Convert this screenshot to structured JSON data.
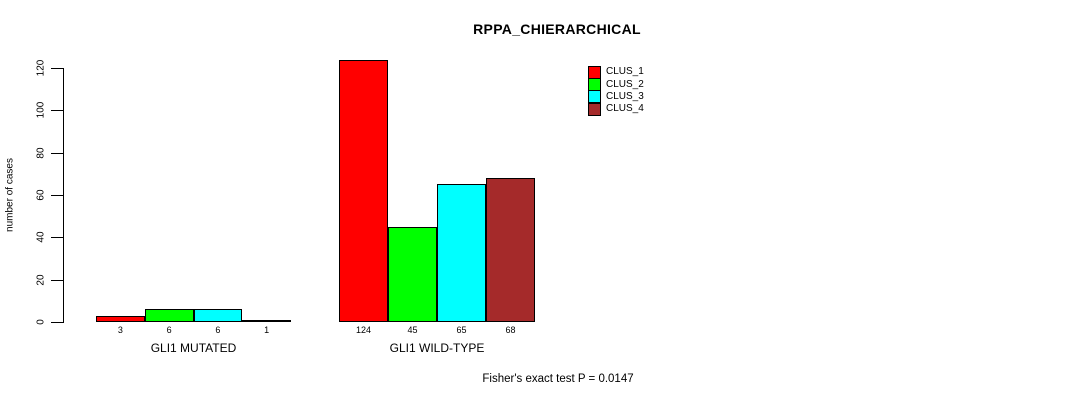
{
  "chart_data": {
    "type": "bar",
    "title": "RPPA_CHIERARCHICAL",
    "ylabel": "number of cases",
    "xlabel": "",
    "ylim": [
      0,
      120
    ],
    "yticks": [
      0,
      20,
      40,
      60,
      80,
      100,
      120
    ],
    "grid": false,
    "legend_position": "top-right",
    "categories": [
      "GLI1 MUTATED",
      "GLI1 WILD-TYPE"
    ],
    "series": [
      {
        "name": "CLUS_1",
        "color": "#FF0000",
        "values": [
          3,
          124
        ]
      },
      {
        "name": "CLUS_2",
        "color": "#00FF00",
        "values": [
          6,
          45
        ]
      },
      {
        "name": "CLUS_3",
        "color": "#00FFFF",
        "values": [
          6,
          65
        ]
      },
      {
        "name": "CLUS_4",
        "color": "#A52A2A",
        "values": [
          1,
          68
        ]
      }
    ],
    "groups": [
      {
        "label": "GLI1 MUTATED",
        "values": [
          3,
          6,
          6,
          1
        ]
      },
      {
        "label": "GLI1 WILD-TYPE",
        "values": [
          124,
          45,
          65,
          68
        ]
      }
    ],
    "bar_value_labels": [
      "3",
      "6",
      "6",
      "1",
      "124",
      "45",
      "65",
      "68"
    ],
    "annotation": "Fisher's exact test P = 0.0147"
  }
}
